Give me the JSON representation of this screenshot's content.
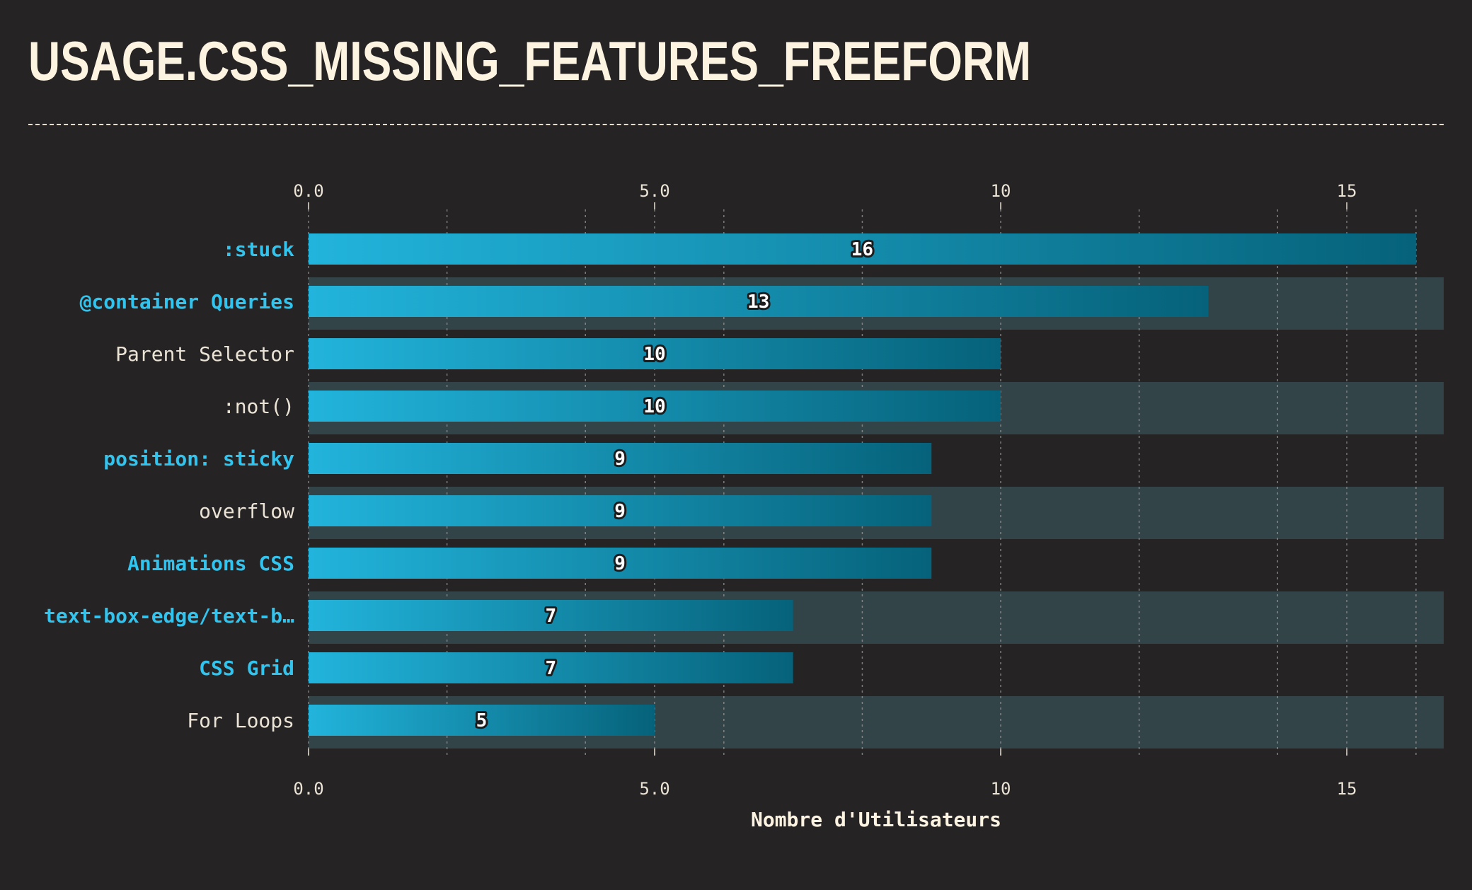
{
  "title": "USAGE.CSS_MISSING_FEATURES_FREEFORM",
  "colors": {
    "background": "#262324",
    "title": "#fdf3e1",
    "highlight_label": "#31c4ee",
    "normal_label": "#eae3d6",
    "bar_start": "#22b4dc",
    "bar_end": "#06627a",
    "row_band": "#334449",
    "grid": "#9a9a9a"
  },
  "chart_data": {
    "type": "bar",
    "orientation": "horizontal",
    "categories": [
      ":stuck",
      "@container Queries",
      "Parent Selector",
      ":not()",
      "position: sticky",
      "overflow",
      "Animations CSS",
      "text-box-edge/text-b…",
      "CSS Grid",
      "For Loops"
    ],
    "values": [
      16,
      13,
      10,
      10,
      9,
      9,
      9,
      7,
      7,
      5
    ],
    "highlighted": [
      true,
      true,
      false,
      false,
      true,
      false,
      true,
      true,
      true,
      false
    ],
    "xlim": [
      0,
      16.4
    ],
    "ticks": [
      0,
      5,
      10,
      15
    ],
    "tick_labels": [
      "0.0",
      "5.0",
      "10",
      "15"
    ],
    "minor_grid": [
      2,
      4,
      6,
      8,
      12,
      14,
      16
    ],
    "xlabel": "Nombre d'Utilisateurs",
    "ylabel": "",
    "grid": true,
    "legend": "none"
  }
}
